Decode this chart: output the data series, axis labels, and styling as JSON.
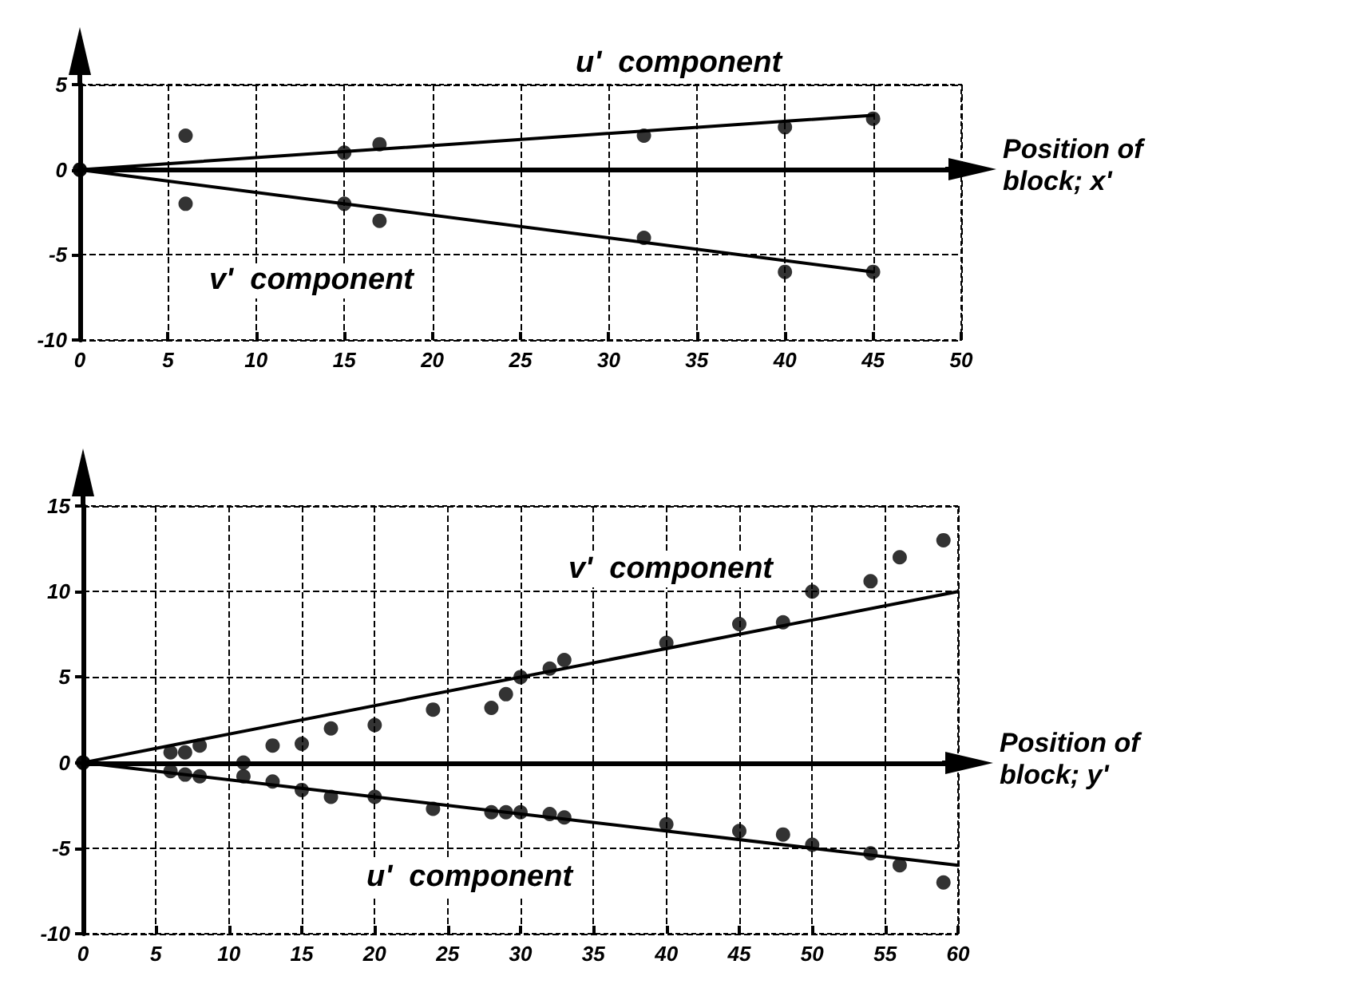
{
  "chart_data": [
    {
      "type": "scatter",
      "xlabel": "Position of block; x'",
      "xlim": [
        0,
        50
      ],
      "xticks": [
        0,
        5,
        10,
        15,
        20,
        25,
        30,
        35,
        40,
        45,
        50
      ],
      "ylim": [
        -10,
        5
      ],
      "yticks": [
        -10,
        -5,
        0,
        5
      ],
      "grid": true,
      "marker": "circle",
      "annotations": [
        "u'  component",
        "v'  component"
      ],
      "series": [
        {
          "color": "#000000",
          "x": [
            0,
            6,
            15,
            17,
            32,
            40,
            45
          ],
          "values": [
            0,
            2,
            1,
            1.5,
            2,
            2.5,
            3
          ]
        },
        {
          "color": "#000000",
          "x": [
            0,
            6,
            15,
            17,
            32,
            40,
            45
          ],
          "values": [
            0,
            -2,
            -2,
            -3,
            -4,
            -6,
            -6
          ]
        },
        {
          "type": "line",
          "marker": "none",
          "line_style": "solid",
          "color": "#000000",
          "x": [
            0,
            45
          ],
          "values": [
            0,
            3.2
          ]
        },
        {
          "type": "line",
          "marker": "none",
          "line_style": "solid",
          "color": "#000000",
          "x": [
            0,
            45
          ],
          "values": [
            0,
            -6
          ]
        }
      ]
    },
    {
      "type": "scatter",
      "xlabel": "Position of block; y'",
      "xlim": [
        0,
        60
      ],
      "xticks": [
        0,
        5,
        10,
        15,
        20,
        25,
        30,
        35,
        40,
        45,
        50,
        55,
        60
      ],
      "ylim": [
        -10,
        15
      ],
      "yticks": [
        -10,
        -5,
        0,
        5,
        10,
        15
      ],
      "grid": true,
      "marker": "circle",
      "annotations": [
        "v'  component",
        "u'  component"
      ],
      "series": [
        {
          "color": "#000000",
          "x": [
            0,
            6,
            7,
            8,
            11,
            13,
            15,
            17,
            20,
            24,
            28,
            29,
            30,
            32,
            33,
            40,
            45,
            48,
            50,
            54,
            56,
            59
          ],
          "values": [
            0,
            0.6,
            0.6,
            1,
            0,
            1,
            1.1,
            2,
            2.2,
            3.1,
            3.2,
            4,
            5,
            5.5,
            6,
            7,
            8.1,
            8.2,
            10,
            10.6,
            12,
            13
          ]
        },
        {
          "color": "#000000",
          "x": [
            0,
            6,
            7,
            8,
            11,
            13,
            15,
            17,
            20,
            24,
            28,
            29,
            30,
            32,
            33,
            40,
            45,
            48,
            50,
            54,
            56,
            59
          ],
          "values": [
            0,
            -0.5,
            -0.7,
            -0.8,
            -0.8,
            -1.1,
            -1.6,
            -2,
            -2,
            -2.7,
            -2.9,
            -2.9,
            -2.9,
            -3,
            -3.2,
            -3.6,
            -4,
            -4.2,
            -4.8,
            -5.3,
            -6,
            -7
          ]
        },
        {
          "type": "line",
          "marker": "none",
          "line_style": "solid",
          "color": "#000000",
          "x": [
            0,
            60
          ],
          "values": [
            0,
            10
          ]
        },
        {
          "type": "line",
          "marker": "none",
          "line_style": "solid",
          "color": "#000000",
          "x": [
            0,
            60
          ],
          "values": [
            0,
            -6
          ]
        }
      ]
    }
  ]
}
